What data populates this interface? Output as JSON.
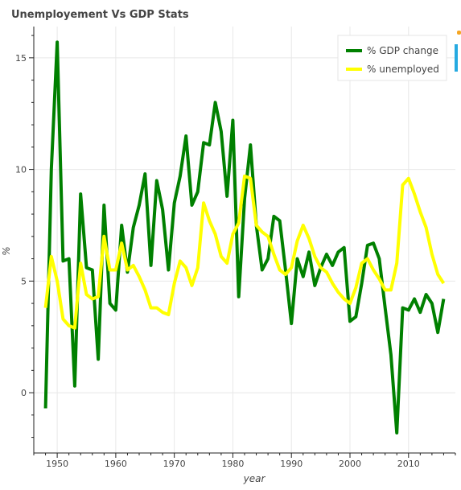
{
  "chart_data": {
    "type": "line",
    "title": "Unemployement Vs GDP Stats",
    "xlabel": "year",
    "ylabel": "%",
    "xlim": [
      1946,
      2018
    ],
    "ylim": [
      -2.7,
      16.4
    ],
    "xticks": [
      1950,
      1960,
      1970,
      1980,
      1990,
      2000,
      2010
    ],
    "yticks": [
      0,
      5,
      10,
      15
    ],
    "grid": true,
    "legend_position": "top-right",
    "series": [
      {
        "name": "% GDP change",
        "color": "#008000",
        "x": [
          1948,
          1949,
          1950,
          1951,
          1952,
          1953,
          1954,
          1955,
          1956,
          1957,
          1958,
          1959,
          1960,
          1961,
          1962,
          1963,
          1964,
          1965,
          1966,
          1967,
          1968,
          1969,
          1970,
          1971,
          1972,
          1973,
          1974,
          1975,
          1976,
          1977,
          1978,
          1979,
          1980,
          1981,
          1982,
          1983,
          1984,
          1985,
          1986,
          1987,
          1988,
          1989,
          1990,
          1991,
          1992,
          1993,
          1994,
          1995,
          1996,
          1997,
          1998,
          1999,
          2000,
          2001,
          2002,
          2003,
          2004,
          2005,
          2006,
          2007,
          2008,
          2009,
          2010,
          2011,
          2012,
          2013,
          2014,
          2015,
          2016
        ],
        "y": [
          -0.7,
          10.0,
          15.7,
          5.9,
          6.0,
          0.3,
          8.9,
          5.6,
          5.5,
          1.5,
          8.4,
          4.0,
          3.7,
          7.5,
          5.4,
          7.4,
          8.4,
          9.8,
          5.7,
          9.5,
          8.2,
          5.5,
          8.5,
          9.7,
          11.5,
          8.4,
          9.0,
          11.2,
          11.1,
          13.0,
          11.7,
          8.8,
          12.2,
          4.3,
          8.7,
          11.1,
          7.5,
          5.5,
          6.0,
          7.9,
          7.7,
          5.5,
          3.1,
          6.0,
          5.2,
          6.3,
          4.8,
          5.6,
          6.2,
          5.7,
          6.3,
          6.5,
          3.2,
          3.4,
          4.9,
          6.6,
          6.7,
          6.0,
          3.8,
          1.7,
          -1.8,
          3.8,
          3.7,
          4.2,
          3.6,
          4.4,
          4.0,
          2.7,
          4.2
        ]
      },
      {
        "name": "% unemployed",
        "color": "#ffff00",
        "x": [
          1948,
          1949,
          1950,
          1951,
          1952,
          1953,
          1954,
          1955,
          1956,
          1957,
          1958,
          1959,
          1960,
          1961,
          1962,
          1963,
          1964,
          1965,
          1966,
          1967,
          1968,
          1969,
          1970,
          1971,
          1972,
          1973,
          1974,
          1975,
          1976,
          1977,
          1978,
          1979,
          1980,
          1981,
          1982,
          1983,
          1984,
          1985,
          1986,
          1987,
          1988,
          1989,
          1990,
          1991,
          1992,
          1993,
          1994,
          1995,
          1996,
          1997,
          1998,
          1999,
          2000,
          2001,
          2002,
          2003,
          2004,
          2005,
          2006,
          2007,
          2008,
          2009,
          2010,
          2011,
          2012,
          2013,
          2014,
          2015,
          2016
        ],
        "y": [
          3.8,
          6.1,
          5.0,
          3.3,
          3.0,
          2.9,
          5.8,
          4.4,
          4.2,
          4.3,
          7.0,
          5.5,
          5.5,
          6.7,
          5.5,
          5.7,
          5.2,
          4.6,
          3.8,
          3.8,
          3.6,
          3.5,
          4.9,
          5.9,
          5.6,
          4.8,
          5.6,
          8.5,
          7.7,
          7.1,
          6.1,
          5.8,
          7.1,
          7.6,
          9.7,
          9.6,
          7.5,
          7.2,
          7.0,
          6.2,
          5.5,
          5.3,
          5.6,
          6.8,
          7.5,
          6.9,
          6.1,
          5.6,
          5.4,
          4.9,
          4.5,
          4.2,
          4.0,
          4.7,
          5.8,
          6.0,
          5.5,
          5.1,
          4.6,
          4.6,
          5.8,
          9.3,
          9.6,
          8.9,
          8.1,
          7.4,
          6.2,
          5.3,
          4.9
        ]
      }
    ]
  },
  "colors": {
    "accent_toolbar": "#26aae1",
    "accent_dot": "#f5a623"
  }
}
